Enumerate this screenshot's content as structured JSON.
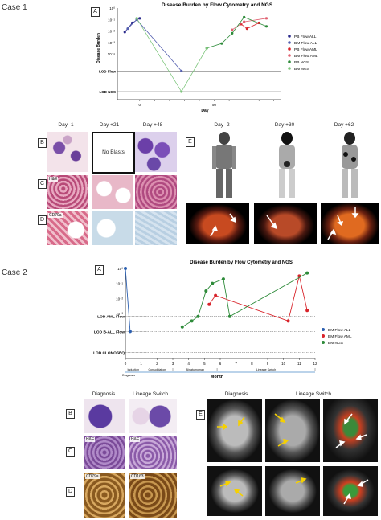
{
  "case1": {
    "label": "Case 1",
    "panelA": {
      "letter": "A",
      "chart_data": {
        "type": "line",
        "title": "Disease Burden by Flow Cytometry and NGS",
        "xlabel": "Day",
        "ylabel": "Disease Burden",
        "x_ticks": [
          "0",
          "50"
        ],
        "y_ticks": [
          "10⁰",
          "10⁻¹",
          "10⁻²",
          "10⁻³",
          "10⁻⁴"
        ],
        "lod_lines": [
          "LOD Flow",
          "LOD NGS"
        ],
        "legend_position": "right",
        "series": [
          {
            "name": "PB Flow ALL",
            "color": "#2b2b8c",
            "points": [
              [
                -10,
                -2.1
              ],
              [
                -5,
                -1.3
              ],
              [
                0,
                -0.9
              ]
            ]
          },
          {
            "name": "BM Flow ALL",
            "color": "#5560b0",
            "points": [
              [
                -8,
                -1.8
              ],
              [
                -2,
                -1.0
              ],
              [
                28,
                -5.5
              ]
            ]
          },
          {
            "name": "PB Flow AML",
            "color": "#d8232a",
            "points": [
              [
                68,
                -1.4
              ],
              [
                72,
                -1.8
              ],
              [
                80,
                -1.3
              ]
            ]
          },
          {
            "name": "BM Flow AML",
            "color": "#e06070",
            "points": [
              [
                62,
                -1.9
              ],
              [
                70,
                -1.2
              ],
              [
                85,
                -0.9
              ]
            ]
          },
          {
            "name": "PB NGS",
            "color": "#2e8b3a",
            "points": [
              [
                45,
                -3.5
              ],
              [
                55,
                -3.1
              ],
              [
                62,
                -2.2
              ],
              [
                70,
                -0.8
              ],
              [
                85,
                -1.6
              ]
            ]
          },
          {
            "name": "BM NGS",
            "color": "#7cc57a",
            "points": [
              [
                -2,
                -0.9
              ],
              [
                28,
                -7.3
              ],
              [
                45,
                -3.5
              ]
            ]
          }
        ]
      }
    },
    "panelB": {
      "letter": "B",
      "days": [
        "Day -1",
        "Day +21",
        "Day +48"
      ],
      "no_blasts": "No Blasts"
    },
    "panelC": {
      "letter": "C",
      "stain": "H&E"
    },
    "panelD": {
      "letter": "D",
      "stain": "CD79a"
    },
    "panelE": {
      "letter": "E",
      "days": [
        "Day -2",
        "Day +30",
        "Day +62"
      ]
    }
  },
  "case2": {
    "label": "Case 2",
    "panelA": {
      "letter": "A",
      "chart_data": {
        "type": "line",
        "title": "Disease Burden by Flow Cytometry and NGS",
        "xlabel": "Month",
        "ylabel": "",
        "x_ticks": [
          "0",
          "1",
          "2",
          "3",
          "4",
          "5",
          "6",
          "7",
          "8",
          "9",
          "10",
          "11",
          "12"
        ],
        "xlim": [
          0,
          12
        ],
        "y_ticks": [
          "10⁰",
          "10⁻¹",
          "10⁻²",
          "10⁻³"
        ],
        "lod_lines": [
          "LOD AML Flow",
          "LOD B-ALL Flow",
          "LOD CLONOSEQ"
        ],
        "legend_position": "right",
        "phases": [
          "Induction",
          "Consolidation",
          "Blinatumomab",
          "Lineage Switch"
        ],
        "phase_sublabel": "Diagnosis",
        "series": [
          {
            "name": "BM Flow ALL",
            "color": "#2b5fb0",
            "points": [
              [
                0,
                0.0
              ],
              [
                0.3,
                -4.2
              ]
            ]
          },
          {
            "name": "BM Flow AML",
            "color": "#d8232a",
            "points": [
              [
                5.3,
                -2.4
              ],
              [
                5.7,
                -1.8
              ],
              [
                10.3,
                -3.5
              ],
              [
                11,
                -0.5
              ],
              [
                11.5,
                -2.8
              ]
            ]
          },
          {
            "name": "BM NGS",
            "color": "#2e8b3a",
            "points": [
              [
                3.6,
                -3.9
              ],
              [
                4.2,
                -3.5
              ],
              [
                4.6,
                -3.2
              ],
              [
                5.1,
                -1.5
              ],
              [
                5.5,
                -1.0
              ],
              [
                6.2,
                -0.7
              ],
              [
                6.6,
                -3.2
              ],
              [
                11.5,
                -0.3
              ]
            ]
          }
        ]
      }
    },
    "panelB": {
      "letter": "B",
      "columns": [
        "Diagnosis",
        "Lineage Switch"
      ]
    },
    "panelC": {
      "letter": "C",
      "stains": [
        "H&E",
        "H&E"
      ]
    },
    "panelD": {
      "letter": "D",
      "stains": [
        "CD79a",
        "CD163"
      ]
    },
    "panelE": {
      "letter": "E",
      "columns": [
        "Diagnosis",
        "Lineage Switch"
      ]
    }
  }
}
